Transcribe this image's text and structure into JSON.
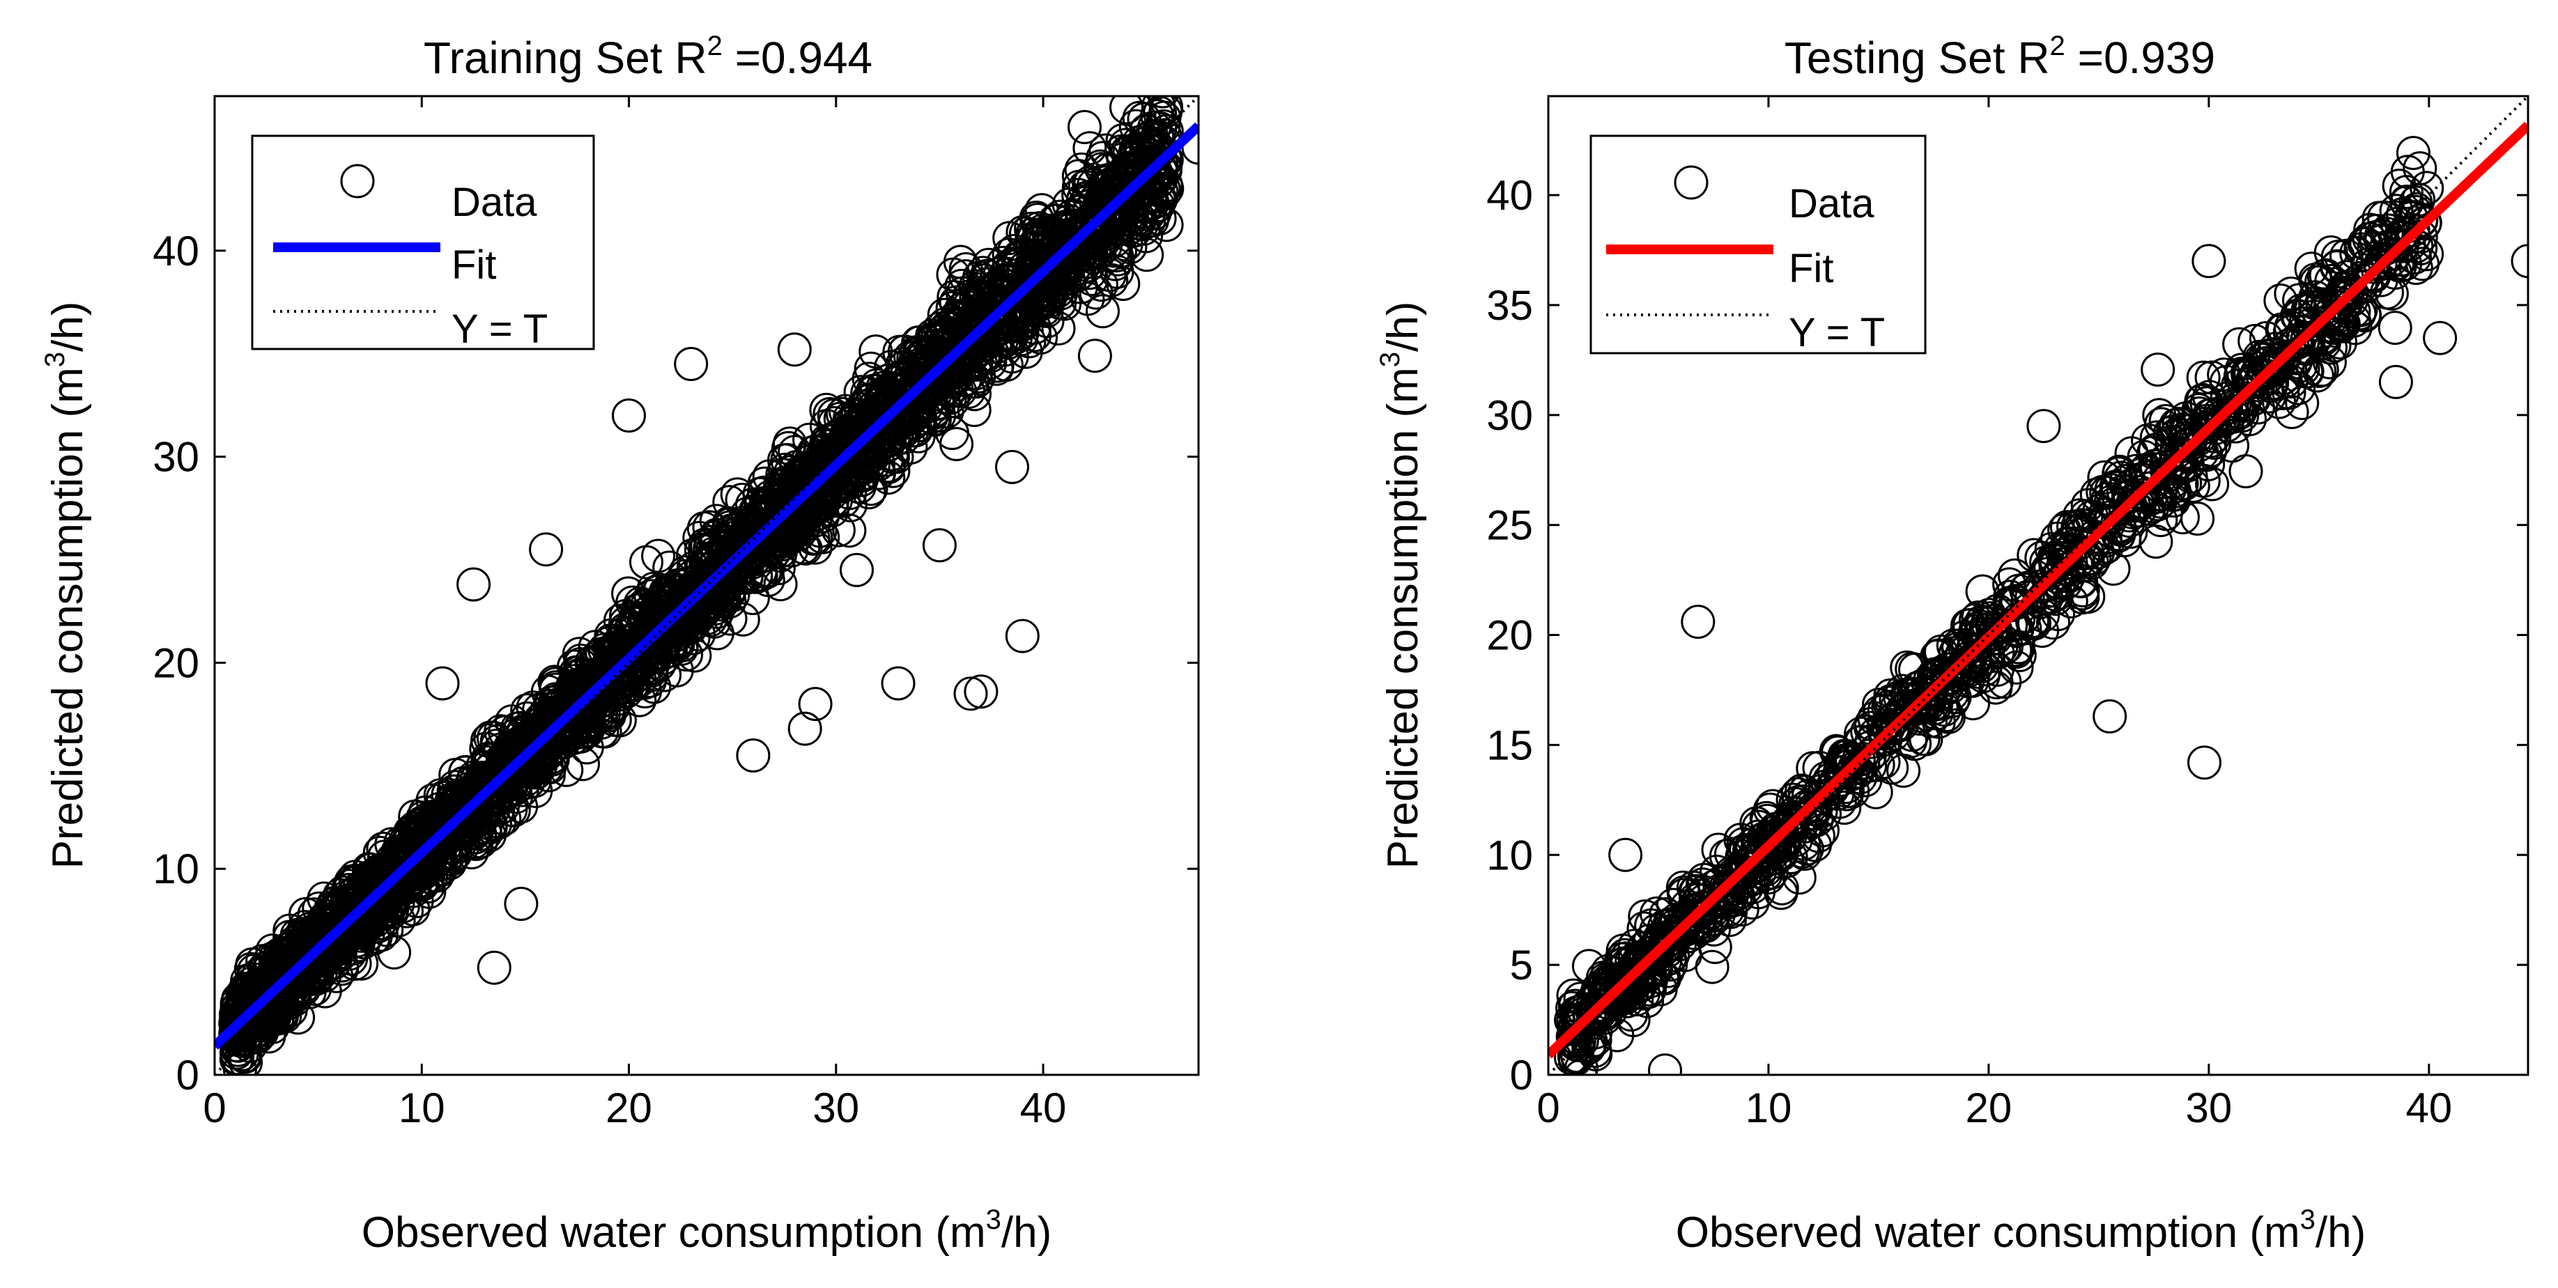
{
  "chart_data": [
    {
      "id": "training",
      "type": "scatter",
      "title_prefix": "Training Set R",
      "title_sup": "2",
      "title_suffix": " =0.944",
      "r_squared": 0.944,
      "xlabel_prefix": "Observed water consumption (m",
      "xlabel_sup": "3",
      "xlabel_suffix": "/h)",
      "ylabel_prefix": "Predicted consumption (m",
      "ylabel_sup": "3",
      "ylabel_suffix": "/h)",
      "xlim": [
        0,
        47.5
      ],
      "ylim": [
        0,
        47.5
      ],
      "xticks": [
        0,
        10,
        20,
        30,
        40
      ],
      "yticks": [
        0,
        10,
        20,
        30,
        40
      ],
      "grid": false,
      "fit_color": "#0000ff",
      "fit_line": {
        "slope": 0.94,
        "intercept": 1.4
      },
      "identity_line": true,
      "legend": {
        "position": "top-left",
        "entries": [
          "Data",
          "Fit",
          "Y = T"
        ]
      },
      "points": {
        "count": 3000,
        "x_range": [
          1,
          46
        ],
        "noise_sd": 1.4,
        "outliers": [
          [
            1,
            2.5
          ],
          [
            1.5,
            0.6
          ],
          [
            13.5,
            5.2
          ],
          [
            14.8,
            8.3
          ],
          [
            11,
            19
          ],
          [
            12.5,
            23.8
          ],
          [
            16,
            25.5
          ],
          [
            20,
            32
          ],
          [
            23,
            34.5
          ],
          [
            26,
            15.5
          ],
          [
            28.5,
            16.8
          ],
          [
            29,
            18
          ],
          [
            36.5,
            18.5
          ],
          [
            37,
            18.6
          ],
          [
            33,
            19
          ],
          [
            39,
            21.3
          ],
          [
            28,
            35.2
          ],
          [
            42,
            46
          ],
          [
            45,
            39.8
          ],
          [
            47.5,
            45
          ],
          [
            40.5,
            40.7
          ],
          [
            41.5,
            40.2
          ],
          [
            44,
            40.3
          ],
          [
            42.5,
            34.9
          ],
          [
            38.5,
            29.5
          ],
          [
            31,
            24.5
          ],
          [
            35,
            25.7
          ]
        ]
      }
    },
    {
      "id": "testing",
      "type": "scatter",
      "title_prefix": "Testing Set R",
      "title_sup": "2",
      "title_suffix": " =0.939",
      "r_squared": 0.939,
      "xlabel_prefix": "Observed water consumption (m",
      "xlabel_sup": "3",
      "xlabel_suffix": "/h)",
      "ylabel_prefix": "Predicted consumption (m",
      "ylabel_sup": "3",
      "ylabel_suffix": "/h)",
      "xlim": [
        0,
        44.5
      ],
      "ylim": [
        0,
        44.5
      ],
      "xticks": [
        0,
        10,
        20,
        30,
        40
      ],
      "yticks": [
        0,
        5,
        10,
        15,
        20,
        25,
        30,
        35,
        40
      ],
      "grid": false,
      "fit_color": "#ff0000",
      "fit_line": {
        "slope": 0.95,
        "intercept": 0.9
      },
      "identity_line": true,
      "legend": {
        "position": "top-left",
        "entries": [
          "Data",
          "Fit",
          "Y = T"
        ]
      },
      "points": {
        "count": 1100,
        "x_range": [
          1,
          40
        ],
        "noise_sd": 1.3,
        "outliers": [
          [
            1.5,
            0.3
          ],
          [
            5.3,
            0.2
          ],
          [
            6.8,
            20.6
          ],
          [
            25.5,
            16.3
          ],
          [
            29.8,
            14.2
          ],
          [
            44.5,
            37
          ],
          [
            40.5,
            33.5
          ],
          [
            38.5,
            31.5
          ],
          [
            3.5,
            10
          ],
          [
            30,
            37
          ],
          [
            22.5,
            29.5
          ]
        ]
      }
    }
  ]
}
